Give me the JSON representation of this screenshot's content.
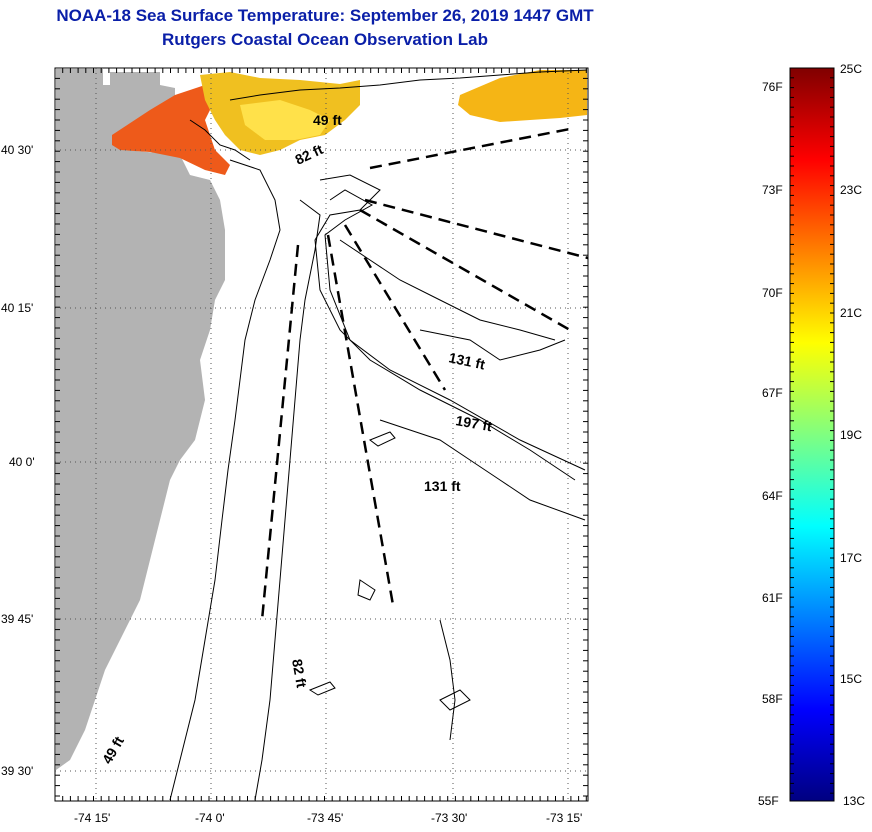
{
  "title": "NOAA-18 Sea Surface Temperature:  September 26, 2019 1447 GMT",
  "subtitle": "Rutgers Coastal Ocean Observation Lab",
  "map": {
    "lon_ticks": [
      "-74 15'",
      "-74 0'",
      "-73 45'",
      "-73 30'",
      "-73 15'"
    ],
    "lat_ticks": [
      "40 30'",
      "40 15'",
      "40 0'",
      "39 45'",
      "39 30'"
    ],
    "land_color": "#b3b3b3",
    "depth_labels": [
      "49 ft",
      "82 ft",
      "131 ft",
      "197 ft",
      "131 ft",
      "82 ft",
      "49 ft"
    ]
  },
  "colorbar": {
    "top_celsius": "25C",
    "bottom_celsius": "13C",
    "bottom_fahrenheit": "55F",
    "fahrenheit_ticks": [
      "76F",
      "73F",
      "70F",
      "67F",
      "64F",
      "61F",
      "58F"
    ],
    "celsius_ticks": [
      "23C",
      "21C",
      "19C",
      "17C",
      "15C"
    ],
    "colors": [
      "#000080",
      "#0000ff",
      "#0080ff",
      "#00ffff",
      "#80ff80",
      "#ffff00",
      "#ff8000",
      "#ff0000",
      "#800000"
    ]
  }
}
